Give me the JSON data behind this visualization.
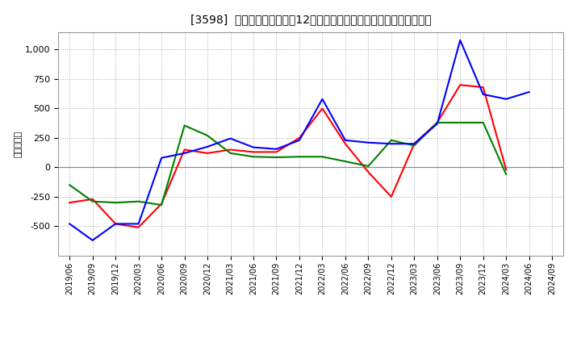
{
  "title": "[3598]  キャッシュフローの12か月移動合計の対前年同期増減額の推移",
  "ylabel": "（百万円）",
  "background_color": "#ffffff",
  "grid_color": "#aaaaaa",
  "x_labels": [
    "2019/06",
    "2019/09",
    "2019/12",
    "2020/03",
    "2020/06",
    "2020/09",
    "2020/12",
    "2021/03",
    "2021/06",
    "2021/09",
    "2021/12",
    "2022/03",
    "2022/06",
    "2022/09",
    "2022/12",
    "2023/03",
    "2023/06",
    "2023/09",
    "2023/12",
    "2024/03",
    "2024/06",
    "2024/09"
  ],
  "eigyo_cf": [
    -300,
    -270,
    -480,
    -510,
    -310,
    150,
    120,
    150,
    130,
    130,
    250,
    500,
    200,
    -40,
    -250,
    200,
    380,
    700,
    680,
    -20,
    null,
    null
  ],
  "toshi_cf": [
    -150,
    -290,
    -300,
    -290,
    -320,
    355,
    270,
    120,
    90,
    85,
    90,
    90,
    50,
    10,
    230,
    185,
    380,
    380,
    380,
    -60,
    null,
    null
  ],
  "free_cf": [
    -480,
    -620,
    -480,
    -480,
    80,
    120,
    175,
    245,
    170,
    155,
    230,
    580,
    230,
    210,
    200,
    200,
    370,
    1080,
    620,
    580,
    640,
    null
  ],
  "eigyo_color": "#ff0000",
  "toshi_color": "#008000",
  "free_color": "#0000ff",
  "ylim": [
    -750,
    1150
  ],
  "yticks": [
    -500,
    -250,
    0,
    250,
    500,
    750,
    1000
  ]
}
